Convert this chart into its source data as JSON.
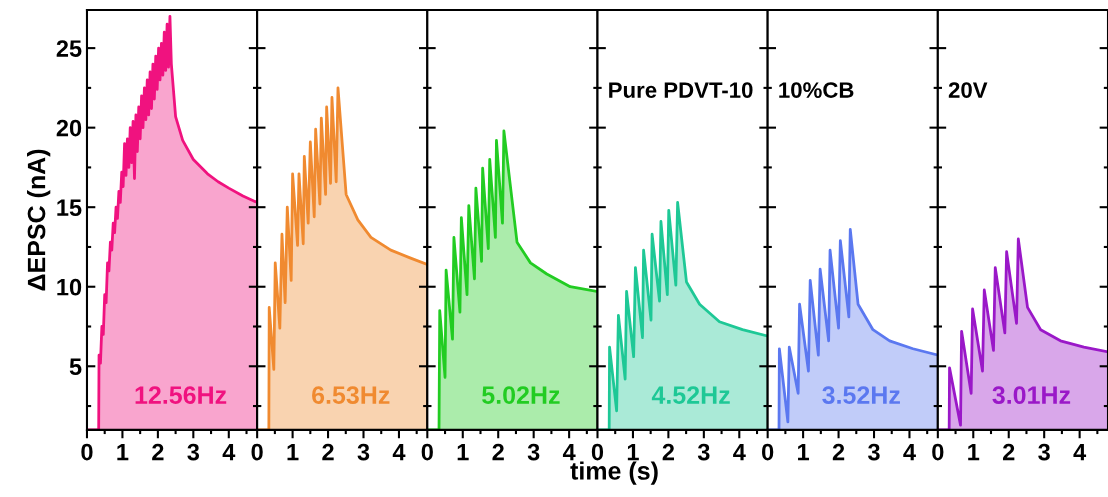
{
  "chart_data": [
    {
      "type": "area",
      "ylabel": "ΔEPSC (nA)",
      "xlim": [
        0,
        4.8
      ],
      "ylim": [
        1,
        27.4
      ],
      "xticks": [
        0,
        1,
        2,
        3,
        4
      ],
      "yticks": [
        5,
        10,
        15,
        20,
        25
      ],
      "grid": false,
      "annotations": [
        "12.56Hz"
      ],
      "series": [
        {
          "color": "#f0127f",
          "x": [
            0,
            0.33,
            0.34,
            0.38,
            0.42,
            0.46,
            0.5,
            0.54,
            0.58,
            0.62,
            0.66,
            0.7,
            0.74,
            0.78,
            0.82,
            0.86,
            0.9,
            0.94,
            0.98,
            1.02,
            1.06,
            1.1,
            1.14,
            1.18,
            1.22,
            1.26,
            1.3,
            1.34,
            1.38,
            1.42,
            1.46,
            1.5,
            1.54,
            1.58,
            1.62,
            1.66,
            1.7,
            1.74,
            1.78,
            1.82,
            1.86,
            1.9,
            1.94,
            1.98,
            2.02,
            2.06,
            2.1,
            2.14,
            2.18,
            2.22,
            2.26,
            2.3,
            2.34,
            2.38,
            2.5,
            2.7,
            3.0,
            3.4,
            3.7,
            4.0,
            4.4,
            4.8
          ],
          "values": [
            1,
            1,
            5.7,
            5.2,
            7.5,
            7.0,
            9.5,
            9.0,
            11.5,
            11.0,
            12.8,
            12.3,
            14.0,
            13.4,
            15.0,
            14.3,
            16.0,
            15.3,
            17.2,
            16.3,
            19.0,
            17.0,
            19.3,
            17.5,
            20.0,
            17.8,
            20.4,
            16.8,
            20.8,
            18.5,
            21.3,
            19.3,
            22.0,
            20.0,
            22.5,
            20.5,
            23.0,
            20.8,
            23.5,
            21.2,
            24.0,
            21.8,
            24.5,
            22.4,
            25.0,
            23.0,
            25.3,
            23.3,
            26.0,
            23.6,
            26.5,
            23.8,
            27.0,
            24.0,
            20.7,
            19.2,
            18.0,
            17.1,
            16.6,
            16.2,
            15.7,
            15.3
          ]
        }
      ]
    },
    {
      "type": "area",
      "xlim": [
        0,
        4.8
      ],
      "ylim": [
        1,
        27.4
      ],
      "xticks": [
        0,
        1,
        2,
        3,
        4
      ],
      "yticks": [
        5,
        10,
        15,
        20,
        25
      ],
      "tick_labels": "x",
      "grid": false,
      "annotations": [
        "6.53Hz"
      ],
      "series": [
        {
          "color": "#f08a30",
          "x": [
            0,
            0.33,
            0.34,
            0.47,
            0.51,
            0.64,
            0.7,
            0.79,
            0.85,
            0.96,
            1.0,
            1.14,
            1.18,
            1.3,
            1.33,
            1.44,
            1.5,
            1.61,
            1.65,
            1.77,
            1.81,
            1.93,
            1.96,
            2.07,
            2.11,
            2.23,
            2.28,
            2.51,
            2.84,
            3.21,
            3.77,
            4.33,
            4.8
          ],
          "values": [
            1,
            1,
            8.7,
            4.8,
            11.5,
            7.4,
            13.3,
            9.0,
            15.0,
            10.4,
            17.1,
            12.6,
            17.1,
            12.7,
            18.2,
            14.0,
            19.1,
            14.4,
            19.9,
            15.2,
            20.6,
            15.8,
            21.3,
            16.5,
            21.9,
            16.6,
            22.5,
            15.8,
            14.2,
            13.1,
            12.3,
            11.8,
            11.4
          ]
        }
      ]
    },
    {
      "type": "area",
      "xlim": [
        0,
        4.8
      ],
      "ylim": [
        1,
        27.4
      ],
      "xticks": [
        0,
        1,
        2,
        3,
        4
      ],
      "yticks": [
        5,
        10,
        15,
        20,
        25
      ],
      "tick_labels": "x",
      "grid": false,
      "annotations": [
        "5.02Hz"
      ],
      "series": [
        {
          "color": "#22cc22",
          "x": [
            0,
            0.33,
            0.35,
            0.5,
            0.53,
            0.71,
            0.75,
            0.92,
            0.96,
            1.12,
            1.17,
            1.33,
            1.37,
            1.53,
            1.56,
            1.72,
            1.76,
            1.92,
            1.95,
            2.12,
            2.16,
            2.53,
            2.91,
            3.37,
            4.03,
            4.8
          ],
          "values": [
            1,
            1,
            8.5,
            4.3,
            11.05,
            6.7,
            13.1,
            8.4,
            14.35,
            9.5,
            15.1,
            10.5,
            16.2,
            11.6,
            17.45,
            12.4,
            18.0,
            13.1,
            19.2,
            14.0,
            19.8,
            12.8,
            11.5,
            10.8,
            10.0,
            9.7
          ]
        }
      ]
    },
    {
      "type": "area",
      "xlabel": "time (s)",
      "xlim": [
        0,
        4.8
      ],
      "ylim": [
        1,
        27.4
      ],
      "xticks": [
        0,
        1,
        2,
        3,
        4
      ],
      "yticks": [
        5,
        10,
        15,
        20,
        25
      ],
      "tick_labels": "x",
      "grid": false,
      "annotations": [
        "4.52Hz",
        "Pure PDVT-10"
      ],
      "series": [
        {
          "color": "#1ec896",
          "x": [
            0,
            0.33,
            0.34,
            0.54,
            0.59,
            0.78,
            0.82,
            1.02,
            1.07,
            1.27,
            1.3,
            1.51,
            1.54,
            1.75,
            1.79,
            1.97,
            2.01,
            2.21,
            2.26,
            2.51,
            2.88,
            3.44,
            4.09,
            4.8
          ],
          "values": [
            1,
            1,
            6.2,
            2.2,
            8.2,
            4.2,
            9.7,
            5.6,
            11.2,
            6.8,
            12.3,
            7.9,
            13.3,
            9.1,
            14.1,
            9.5,
            14.8,
            10.1,
            15.3,
            10.3,
            8.9,
            7.8,
            7.3,
            6.9
          ]
        }
      ]
    },
    {
      "type": "area",
      "xlim": [
        0,
        4.8
      ],
      "ylim": [
        1,
        27.4
      ],
      "xticks": [
        0,
        1,
        2,
        3,
        4
      ],
      "yticks": [
        5,
        10,
        15,
        20,
        25
      ],
      "tick_labels": "x",
      "grid": false,
      "annotations": [
        "3.52Hz",
        "10%CB"
      ],
      "series": [
        {
          "color": "#5b78f0",
          "x": [
            0,
            0.32,
            0.33,
            0.57,
            0.61,
            0.86,
            0.9,
            1.15,
            1.2,
            1.43,
            1.48,
            1.72,
            1.76,
            2.0,
            2.05,
            2.29,
            2.33,
            2.55,
            2.97,
            3.44,
            4.1,
            4.8
          ],
          "values": [
            1,
            1,
            6.1,
            1.5,
            6.2,
            3.3,
            8.9,
            4.7,
            10.4,
            5.7,
            11.1,
            6.6,
            12.3,
            7.4,
            12.9,
            8.1,
            13.6,
            8.9,
            7.3,
            6.6,
            6.1,
            5.7
          ]
        }
      ]
    },
    {
      "type": "area",
      "xlim": [
        0,
        4.8
      ],
      "ylim": [
        1,
        27.4
      ],
      "xticks": [
        0,
        1,
        2,
        3,
        4
      ],
      "yticks": [
        5,
        10,
        15,
        20,
        25
      ],
      "tick_labels": "x",
      "grid": false,
      "annotations": [
        "3.01Hz",
        "20V"
      ],
      "series": [
        {
          "color": "#9a18c8",
          "x": [
            0,
            0.32,
            0.33,
            0.64,
            0.67,
            0.94,
            0.98,
            1.26,
            1.31,
            1.57,
            1.62,
            1.89,
            1.94,
            2.22,
            2.27,
            2.53,
            2.9,
            3.46,
            4.12,
            4.8
          ],
          "values": [
            1,
            1,
            4.9,
            1.3,
            7.2,
            3.3,
            8.6,
            4.7,
            9.8,
            6.0,
            11.2,
            7.1,
            12.2,
            7.7,
            13.0,
            8.7,
            7.3,
            6.6,
            6.2,
            5.9
          ]
        }
      ]
    }
  ]
}
